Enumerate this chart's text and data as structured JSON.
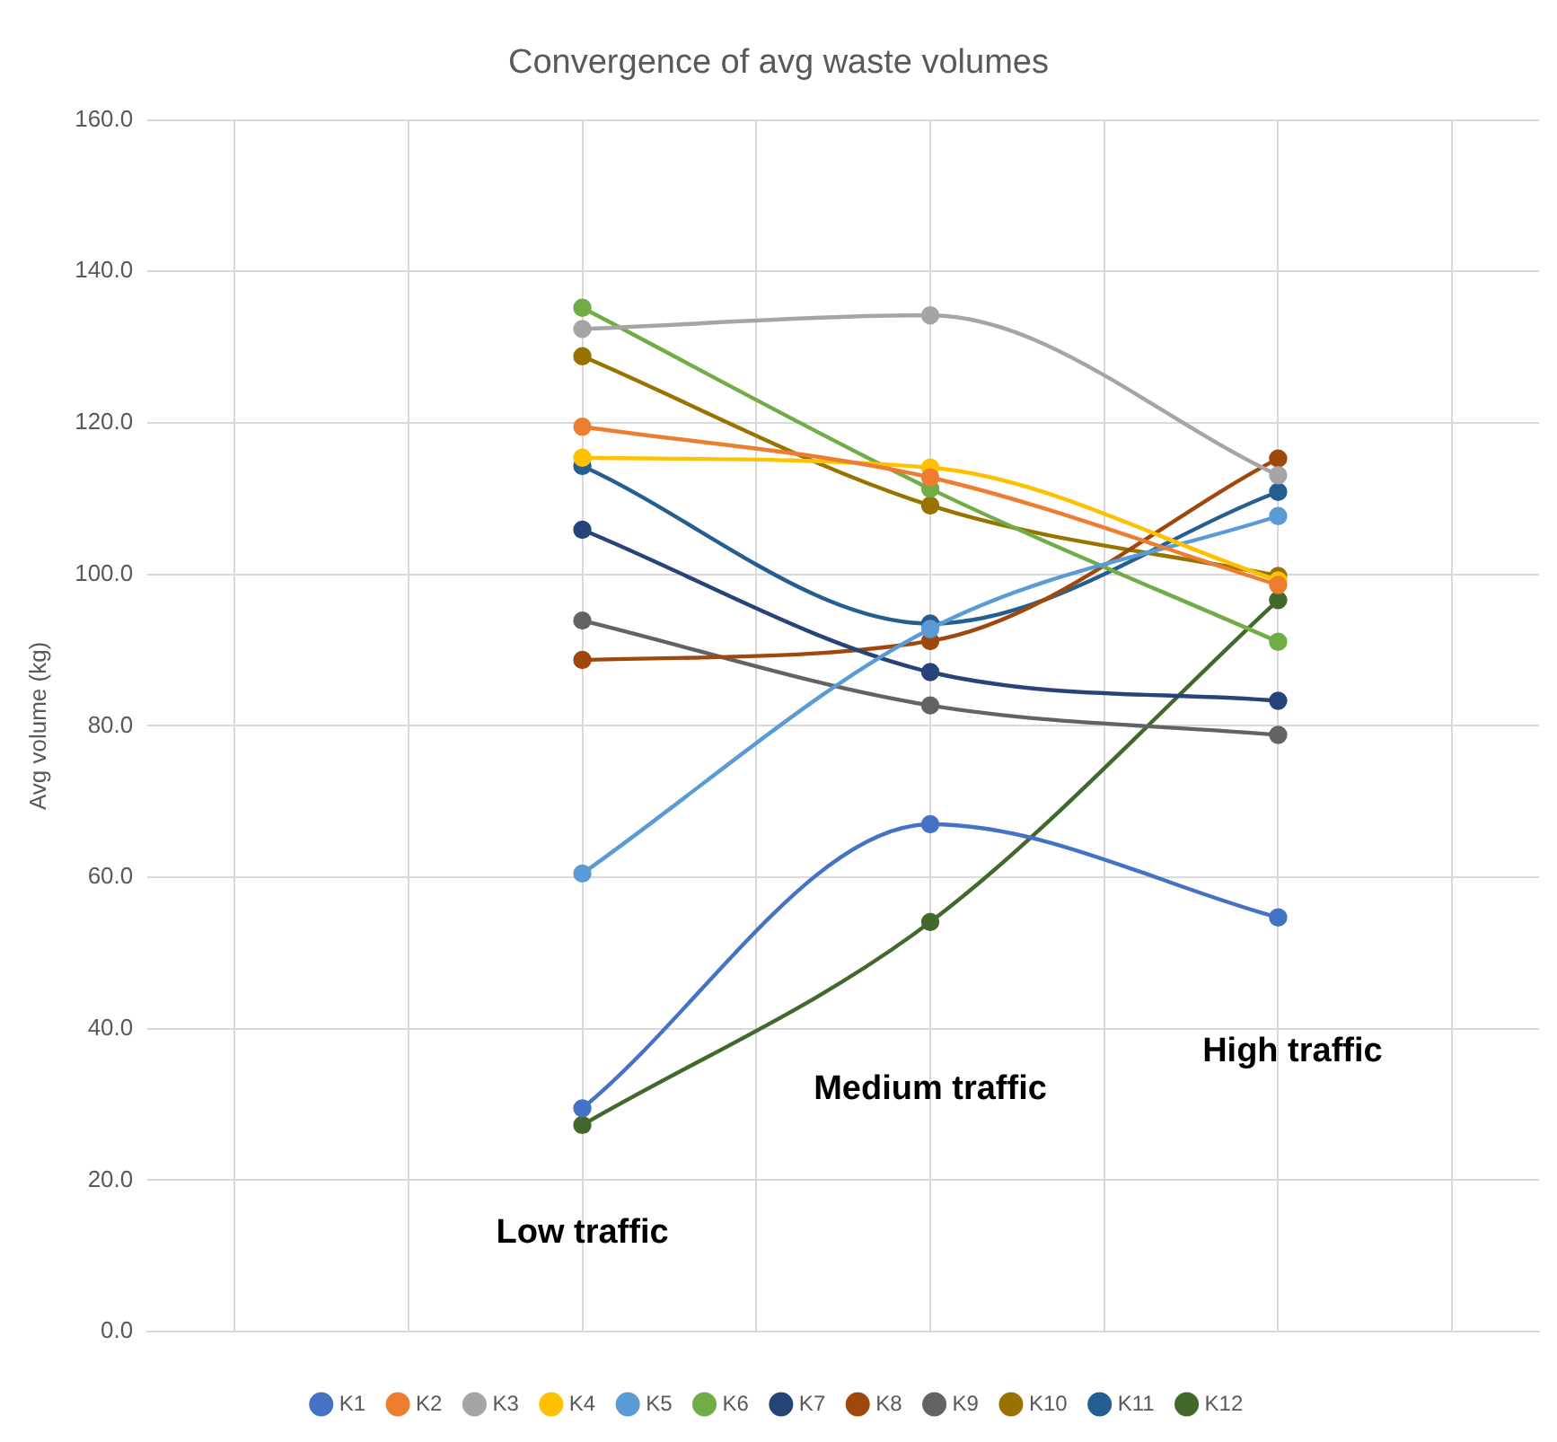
{
  "chart_data": {
    "type": "line",
    "title": "Convergence of avg waste volumes",
    "ylabel": "Avg volume (kg)",
    "categories": [
      null,
      null,
      null,
      null,
      null,
      null,
      null,
      null
    ],
    "ylim": [
      0,
      160
    ],
    "yticks": [
      {
        "value": 0,
        "label": "0.0"
      },
      {
        "value": 20,
        "label": "20.0"
      },
      {
        "value": 40,
        "label": "40.0"
      },
      {
        "value": 60,
        "label": "60.0"
      },
      {
        "value": 80,
        "label": "80.0"
      },
      {
        "value": 100,
        "label": "100.0"
      },
      {
        "value": 120,
        "label": "120.0"
      },
      {
        "value": 140,
        "label": "140.0"
      },
      {
        "value": 160,
        "label": "160.0"
      }
    ],
    "grid": true,
    "legend": "bottom",
    "marker": "circle",
    "line_style": "solid",
    "annotations": [
      "Low traffic",
      "Medium traffic",
      "High traffic"
    ],
    "series": [
      {
        "name": "K1",
        "color": "#4472c4",
        "values": [
          null,
          null,
          29.5,
          null,
          67.0,
          null,
          54.7,
          null
        ]
      },
      {
        "name": "K2",
        "color": "#ed7d31",
        "values": [
          null,
          null,
          119.5,
          null,
          112.8,
          null,
          98.6,
          null
        ]
      },
      {
        "name": "K3",
        "color": "#a5a5a5",
        "values": [
          null,
          null,
          132.4,
          null,
          134.2,
          null,
          113.1,
          null
        ]
      },
      {
        "name": "K4",
        "color": "#ffc000",
        "values": [
          null,
          null,
          115.4,
          null,
          114.1,
          null,
          99.2,
          null
        ]
      },
      {
        "name": "K5",
        "color": "#5b9bd5",
        "values": [
          null,
          null,
          60.5,
          null,
          92.8,
          null,
          107.7,
          null
        ]
      },
      {
        "name": "K6",
        "color": "#70ad47",
        "values": [
          null,
          null,
          135.2,
          null,
          111.3,
          null,
          91.1,
          null
        ]
      },
      {
        "name": "K7",
        "color": "#264478",
        "values": [
          null,
          null,
          105.9,
          null,
          87.1,
          null,
          83.3,
          null
        ]
      },
      {
        "name": "K8",
        "color": "#9e480e",
        "values": [
          null,
          null,
          88.7,
          null,
          91.2,
          null,
          115.3,
          null
        ]
      },
      {
        "name": "K9",
        "color": "#636363",
        "values": [
          null,
          null,
          93.9,
          null,
          82.7,
          null,
          78.8,
          null
        ]
      },
      {
        "name": "K10",
        "color": "#997300",
        "values": [
          null,
          null,
          128.8,
          null,
          109.1,
          null,
          99.8,
          null
        ]
      },
      {
        "name": "K11",
        "color": "#255e91",
        "values": [
          null,
          null,
          114.3,
          null,
          93.5,
          null,
          110.9,
          null
        ]
      },
      {
        "name": "K12",
        "color": "#43682b",
        "values": [
          null,
          null,
          27.3,
          null,
          54.1,
          null,
          96.6,
          null
        ]
      }
    ]
  }
}
